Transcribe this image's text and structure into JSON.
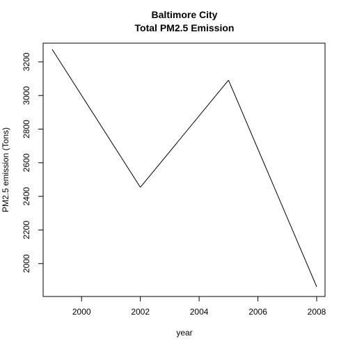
{
  "chart_data": {
    "type": "line",
    "title": "Baltimore City",
    "subtitle": "Total PM2.5 Emission",
    "xlabel": "year",
    "ylabel": "PM2.5 emission (Tons)",
    "x": [
      1999,
      2002,
      2005,
      2008
    ],
    "series": [
      {
        "values": [
          3274.2,
          2453.9,
          3091.4,
          1862.3
        ]
      }
    ],
    "xlim": [
      1999,
      2008
    ],
    "ylim": [
      1862.3,
      3274.2
    ],
    "xticks": [
      2000,
      2002,
      2004,
      2006,
      2008
    ],
    "yticks": [
      2000,
      2200,
      2400,
      2600,
      2800,
      3000,
      3200
    ],
    "grid": false,
    "line_color": "#000000"
  }
}
